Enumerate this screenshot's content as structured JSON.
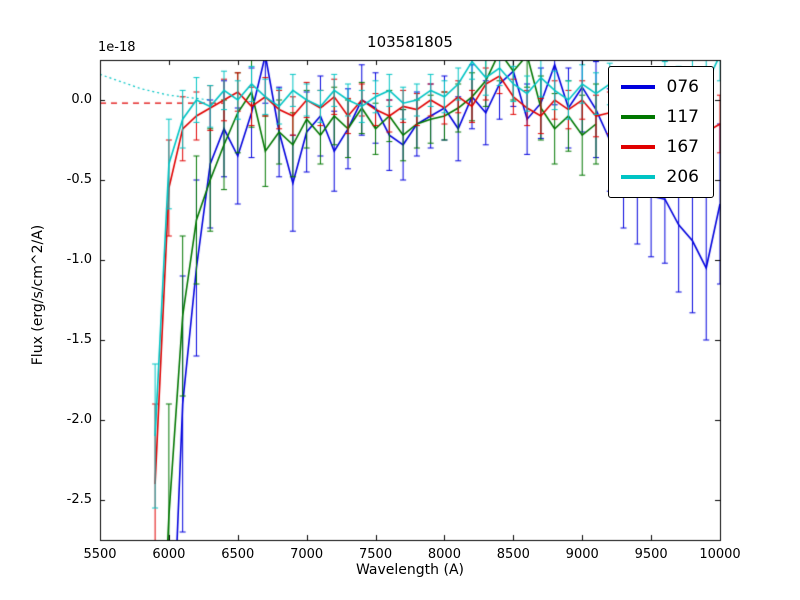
{
  "chart_data": {
    "type": "line",
    "title": "103581805",
    "xlabel": "Wavelength (A)",
    "ylabel": "Flux (erg/s/cm^2/A)",
    "y_offset_text": "1e-18",
    "xlim": [
      5500,
      10000
    ],
    "ylim": [
      -2.75,
      0.25
    ],
    "grid": false,
    "legend_position": "upper right",
    "xticks": [
      5500,
      6000,
      6500,
      7000,
      7500,
      8000,
      8500,
      9000,
      9500,
      10000
    ],
    "xtick_labels": [
      "5500",
      "6000",
      "6500",
      "7000",
      "7500",
      "8000",
      "8500",
      "9000",
      "9500",
      "10000"
    ],
    "yticks": [
      0.0,
      -0.5,
      -1.0,
      -1.5,
      -2.0,
      -2.5
    ],
    "ytick_labels": [
      "0.0",
      "-0.5",
      "-1.0",
      "-1.5",
      "-2.0",
      "-2.5"
    ],
    "series": [
      {
        "name": "076",
        "color": "#0000dd",
        "x": [
          6000,
          6100,
          6200,
          6300,
          6400,
          6500,
          6600,
          6700,
          6800,
          6900,
          7000,
          7100,
          7200,
          7300,
          7400,
          7500,
          7600,
          7700,
          7800,
          7900,
          8000,
          8100,
          8200,
          8300,
          8400,
          8500,
          8600,
          8700,
          8800,
          8900,
          9000,
          9100,
          9200,
          9300,
          9400,
          9500,
          9600,
          9700,
          9800,
          9900,
          10000
        ],
        "y": [
          -4.0,
          -1.9,
          -1.05,
          -0.4,
          -0.18,
          -0.35,
          -0.08,
          0.28,
          -0.2,
          -0.52,
          -0.2,
          -0.1,
          -0.32,
          -0.18,
          0.0,
          -0.05,
          -0.22,
          -0.28,
          -0.15,
          -0.1,
          -0.05,
          -0.18,
          0.02,
          -0.08,
          0.1,
          0.18,
          -0.12,
          -0.02,
          0.22,
          -0.05,
          0.08,
          -0.06,
          -0.25,
          -0.45,
          -0.55,
          -0.6,
          -0.62,
          -0.78,
          -0.88,
          -1.05,
          -0.65
        ],
        "yerr": [
          1.2,
          0.8,
          0.55,
          0.4,
          0.3,
          0.3,
          0.28,
          0.3,
          0.28,
          0.3,
          0.25,
          0.25,
          0.25,
          0.25,
          0.22,
          0.22,
          0.22,
          0.22,
          0.2,
          0.2,
          0.2,
          0.2,
          0.2,
          0.2,
          0.22,
          0.22,
          0.22,
          0.22,
          0.25,
          0.25,
          0.28,
          0.3,
          0.32,
          0.35,
          0.35,
          0.38,
          0.4,
          0.42,
          0.45,
          0.45,
          0.5
        ]
      },
      {
        "name": "117",
        "color": "#007700",
        "x": [
          5900,
          6000,
          6100,
          6200,
          6300,
          6400,
          6500,
          6600,
          6700,
          6800,
          6900,
          7000,
          7100,
          7200,
          7300,
          7400,
          7500,
          7600,
          7700,
          7800,
          7900,
          8000,
          8100,
          8200,
          8300,
          8400,
          8500,
          8600,
          8700,
          8800,
          8900,
          9000,
          9100
        ],
        "y": [
          -4.5,
          -2.6,
          -1.35,
          -0.75,
          -0.5,
          -0.28,
          -0.08,
          0.05,
          -0.32,
          -0.2,
          -0.28,
          -0.12,
          -0.22,
          -0.1,
          -0.18,
          -0.05,
          -0.18,
          -0.1,
          -0.22,
          -0.15,
          -0.12,
          -0.1,
          -0.05,
          0.02,
          0.12,
          0.3,
          0.18,
          0.28,
          -0.05,
          -0.18,
          -0.1,
          -0.22,
          -0.15
        ],
        "yerr": [
          1.0,
          0.7,
          0.5,
          0.4,
          0.32,
          0.28,
          0.25,
          0.22,
          0.22,
          0.2,
          0.2,
          0.18,
          0.18,
          0.18,
          0.18,
          0.16,
          0.16,
          0.16,
          0.16,
          0.15,
          0.15,
          0.15,
          0.15,
          0.15,
          0.16,
          0.18,
          0.18,
          0.2,
          0.2,
          0.22,
          0.22,
          0.25,
          0.25
        ]
      },
      {
        "name": "167",
        "color": "#e00000",
        "x": [
          5900,
          6000,
          6100,
          6200,
          6300,
          6400,
          6500,
          6600,
          6700,
          6800,
          6900,
          7000,
          7100,
          7200,
          7300,
          7400,
          7500,
          7600,
          7700,
          7800,
          7900,
          8000,
          8100,
          8200,
          8300,
          8400,
          8500,
          8600,
          8700,
          8800,
          8900,
          9000,
          9100,
          9200,
          9300,
          9400,
          9500,
          9600,
          9700,
          9800,
          9900,
          10000
        ],
        "y": [
          -2.4,
          -0.55,
          -0.18,
          -0.1,
          -0.05,
          0.0,
          0.05,
          -0.04,
          0.02,
          -0.06,
          -0.1,
          0.0,
          -0.05,
          0.02,
          -0.1,
          0.0,
          -0.06,
          -0.1,
          -0.04,
          -0.06,
          0.0,
          -0.05,
          0.02,
          -0.04,
          0.1,
          0.15,
          0.02,
          -0.05,
          -0.1,
          0.0,
          -0.06,
          0.0,
          -0.1,
          -0.08,
          -0.04,
          -0.1,
          -0.06,
          -0.1,
          -0.14,
          -0.1,
          -0.2,
          -0.15
        ],
        "yerr": [
          0.5,
          0.3,
          0.2,
          0.15,
          0.14,
          0.13,
          0.12,
          0.12,
          0.12,
          0.12,
          0.12,
          0.11,
          0.11,
          0.11,
          0.11,
          0.1,
          0.1,
          0.1,
          0.1,
          0.1,
          0.1,
          0.1,
          0.1,
          0.1,
          0.1,
          0.11,
          0.11,
          0.11,
          0.11,
          0.12,
          0.12,
          0.12,
          0.13,
          0.13,
          0.14,
          0.14,
          0.15,
          0.15,
          0.16,
          0.16,
          0.17,
          0.18
        ]
      },
      {
        "name": "206",
        "color": "#00c4c4",
        "x": [
          5900,
          6000,
          6100,
          6200,
          6300,
          6400,
          6500,
          6600,
          6700,
          6800,
          6900,
          7000,
          7100,
          7200,
          7300,
          7400,
          7500,
          7600,
          7700,
          7800,
          7900,
          8000,
          8100,
          8200,
          8300,
          8400,
          8500,
          8600,
          8700,
          8800,
          8900,
          9000,
          9100,
          9200,
          9300,
          9400,
          9500,
          9600,
          9700,
          9800,
          9900,
          10000
        ],
        "y": [
          -2.1,
          -0.4,
          -0.12,
          0.0,
          -0.04,
          0.06,
          0.0,
          0.1,
          0.02,
          -0.04,
          0.06,
          0.0,
          -0.04,
          0.06,
          0.0,
          -0.04,
          0.02,
          0.06,
          -0.02,
          0.0,
          0.06,
          0.02,
          0.1,
          0.24,
          0.14,
          0.2,
          0.1,
          0.04,
          0.14,
          0.06,
          0.0,
          0.1,
          0.04,
          0.1,
          0.0,
          0.06,
          0.02,
          0.1,
          0.06,
          0.14,
          0.1,
          0.28
        ],
        "yerr": [
          0.45,
          0.28,
          0.18,
          0.14,
          0.13,
          0.12,
          0.12,
          0.11,
          0.11,
          0.11,
          0.1,
          0.1,
          0.1,
          0.1,
          0.1,
          0.1,
          0.1,
          0.1,
          0.1,
          0.1,
          0.1,
          0.1,
          0.1,
          0.11,
          0.11,
          0.11,
          0.11,
          0.11,
          0.12,
          0.12,
          0.12,
          0.12,
          0.13,
          0.13,
          0.13,
          0.14,
          0.14,
          0.14,
          0.15,
          0.15,
          0.15,
          0.16
        ]
      }
    ],
    "baselines": [
      {
        "name": "red-dashed-zero-line",
        "color": "#e00000",
        "style": "dashed",
        "x": [
          5500,
          6400
        ],
        "y": [
          -0.02,
          -0.02
        ]
      },
      {
        "name": "cyan-dotted-model",
        "color": "#00c4c4",
        "style": "dotted",
        "x": [
          5500,
          5600,
          5700,
          5800,
          5900,
          6000,
          6100,
          6200,
          6300
        ],
        "y": [
          0.16,
          0.13,
          0.1,
          0.07,
          0.05,
          0.03,
          0.02,
          0.01,
          0.0
        ]
      }
    ]
  }
}
